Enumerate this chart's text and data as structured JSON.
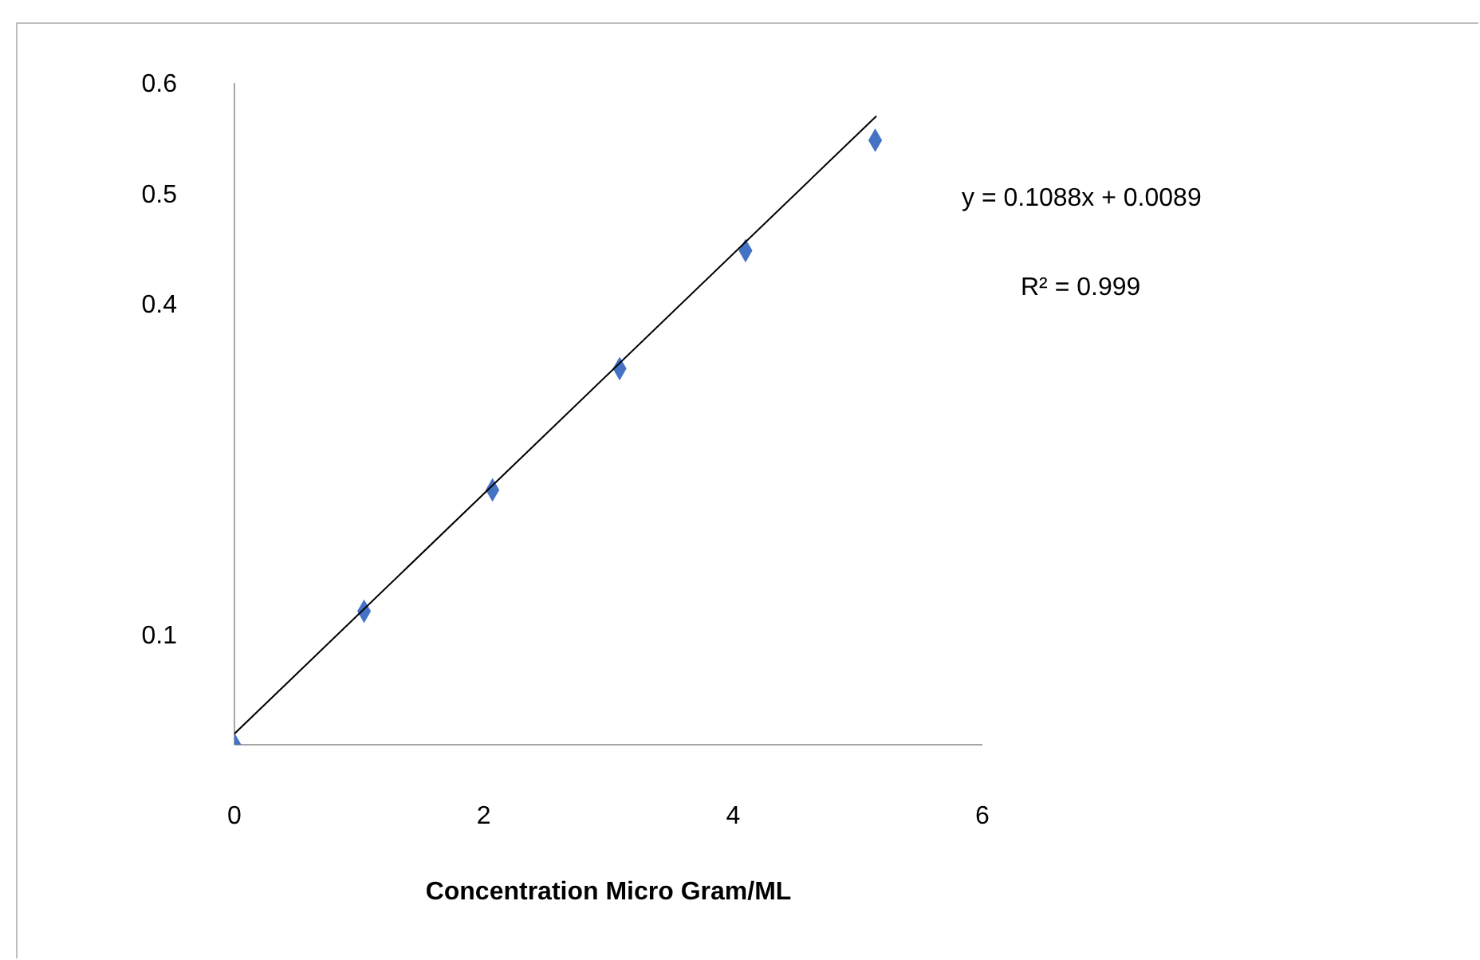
{
  "chart_data": {
    "type": "scatter",
    "xlabel": "Concentration Micro Gram/ML",
    "series": [
      {
        "color": "#4472c4",
        "marker": "diamond",
        "x": [
          0,
          1.04,
          2.07,
          3.09,
          4.1,
          5.14
        ],
        "values": [
          0,
          0.121,
          0.231,
          0.341,
          0.448,
          0.548
        ]
      },
      {
        "type": "line",
        "color": "#000000",
        "marker": "none",
        "x": [
          0,
          5.15
        ],
        "values": [
          0.01,
          0.57
        ]
      }
    ],
    "xlim": [
      0,
      6
    ],
    "xticks": [
      0,
      2,
      4,
      6
    ],
    "ylim": [
      0,
      0.6
    ],
    "yticks": [
      0.1,
      0.4,
      0.5,
      0.6
    ],
    "grid": false,
    "legend": false,
    "annotations": [
      "y = 0.1088x + 0.0089",
      "R² = 0.999"
    ]
  }
}
